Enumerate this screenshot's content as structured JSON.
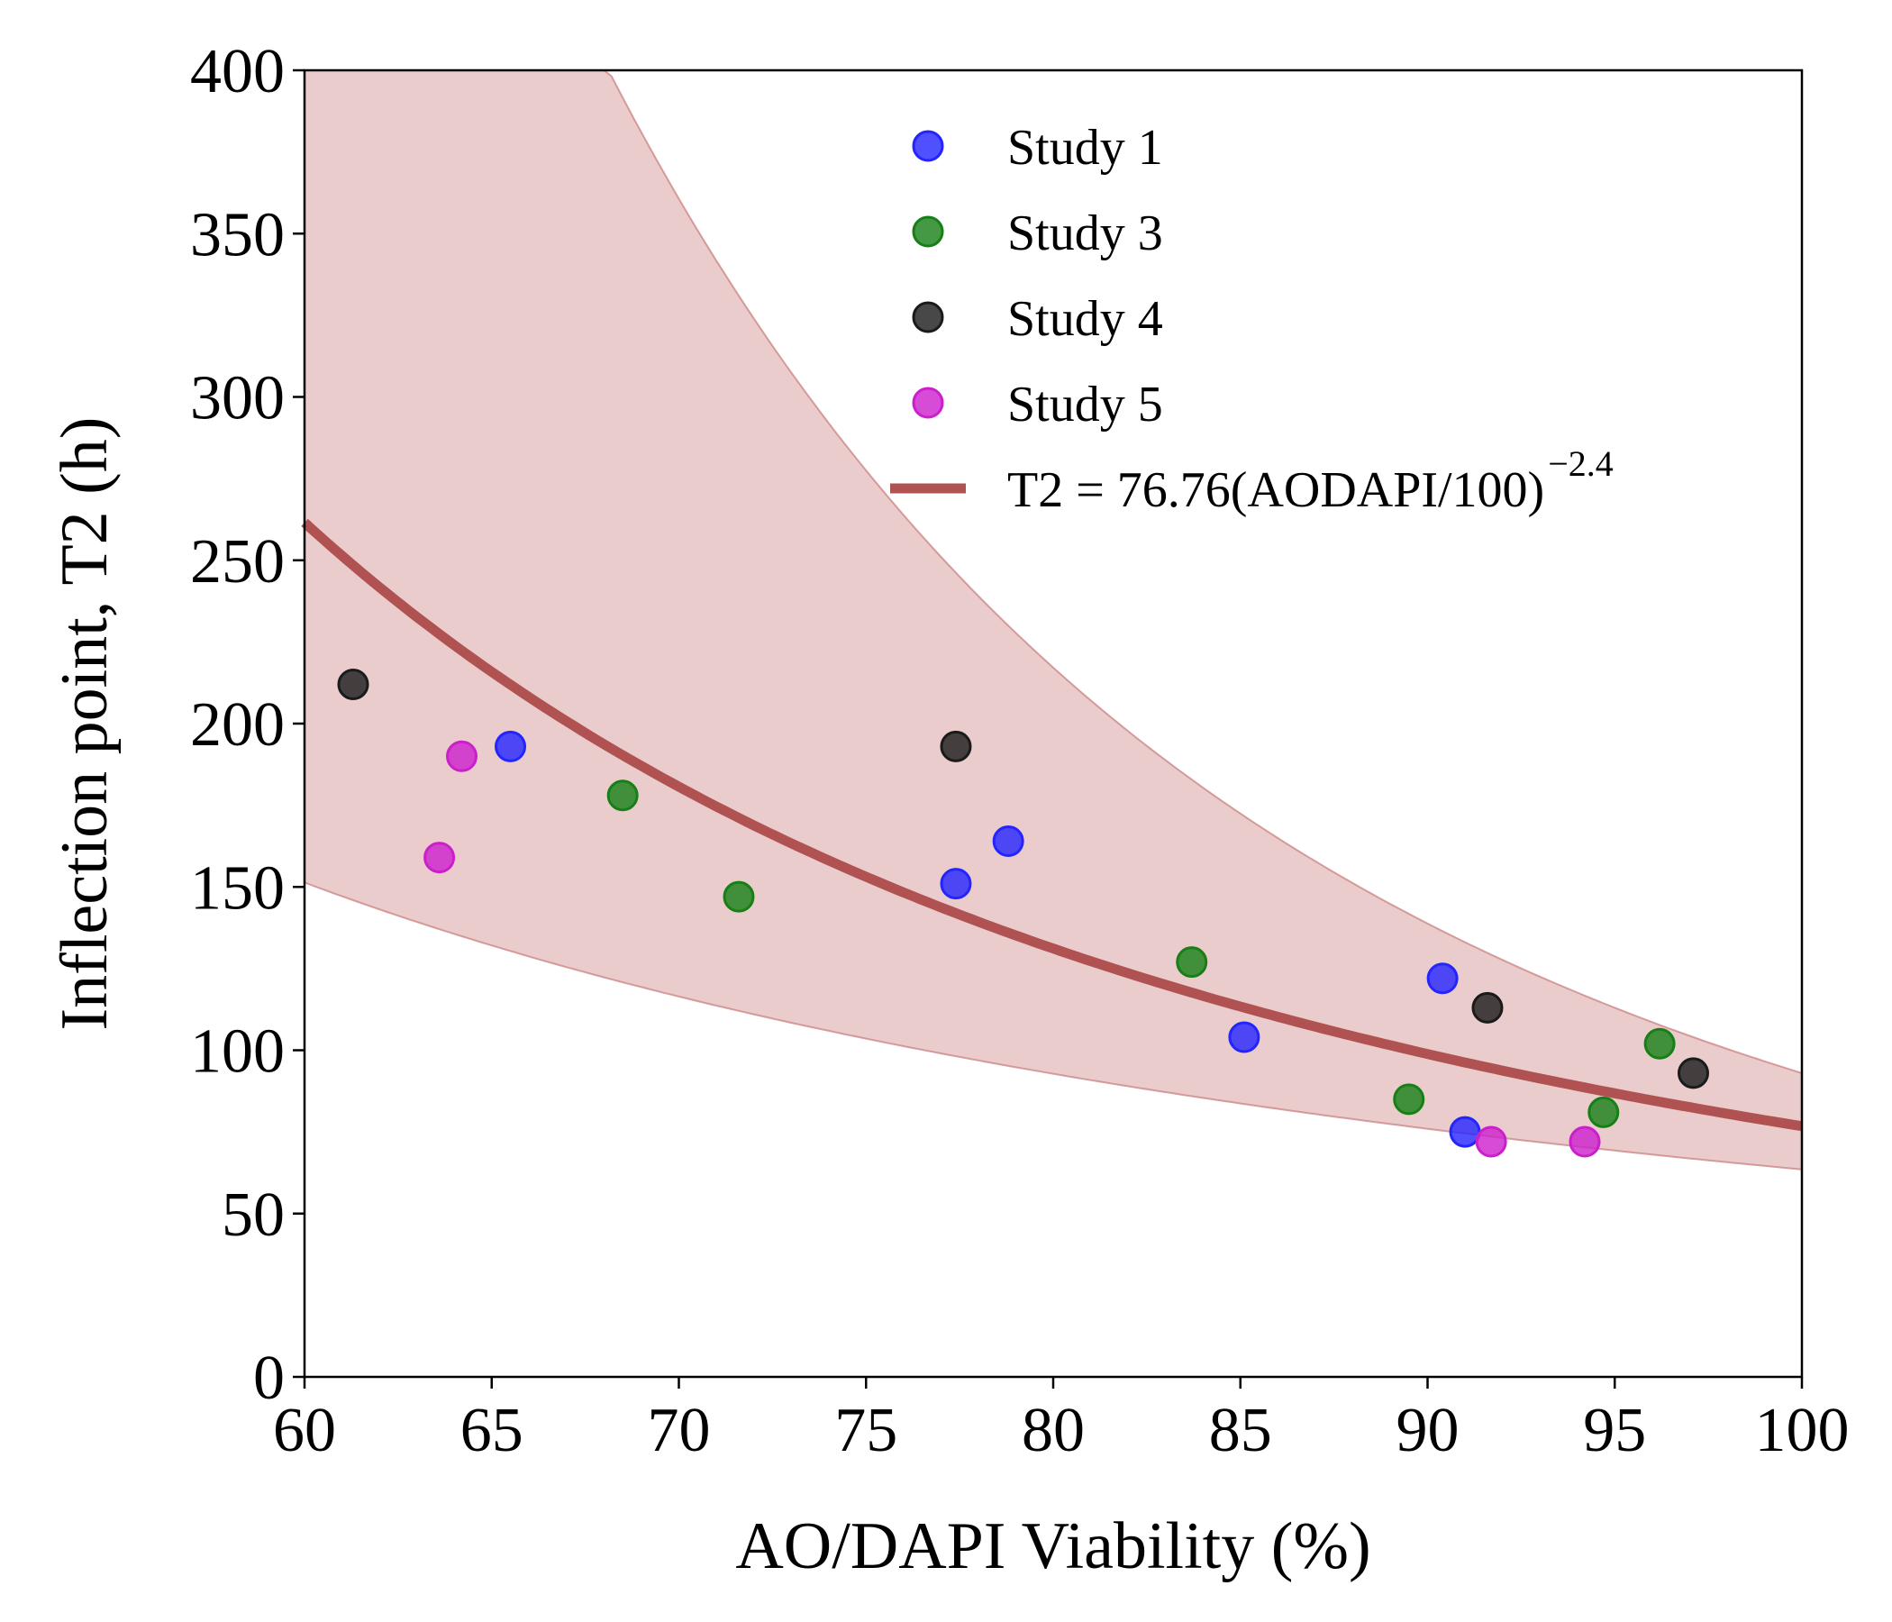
{
  "chart_data": {
    "type": "scatter",
    "xlabel": "AO/DAPI Viability (%)",
    "ylabel": "Inflection point, T2 (h)",
    "xlim": [
      60,
      100
    ],
    "ylim": [
      0,
      400
    ],
    "x_ticks": [
      "60",
      "65",
      "70",
      "75",
      "80",
      "85",
      "90",
      "95",
      "100"
    ],
    "y_ticks": [
      "0",
      "50",
      "100",
      "150",
      "200",
      "250",
      "300",
      "350",
      "400"
    ],
    "grid": false,
    "legend_position": "top-right",
    "series": [
      {
        "name": "Study 1",
        "color": "#2424ff",
        "points": [
          [
            65.5,
            193
          ],
          [
            77.4,
            151
          ],
          [
            78.8,
            164
          ],
          [
            85.1,
            104
          ],
          [
            90.4,
            122
          ],
          [
            91.0,
            75
          ]
        ]
      },
      {
        "name": "Study 3",
        "color": "#168016",
        "points": [
          [
            68.5,
            178
          ],
          [
            71.6,
            147
          ],
          [
            83.7,
            127
          ],
          [
            89.5,
            85
          ],
          [
            94.7,
            81
          ],
          [
            96.2,
            102
          ]
        ]
      },
      {
        "name": "Study 4",
        "color": "#1a1a1a",
        "points": [
          [
            61.3,
            212
          ],
          [
            77.4,
            193
          ],
          [
            91.6,
            113
          ],
          [
            97.1,
            93
          ]
        ]
      },
      {
        "name": "Study 5",
        "color": "#cc1fcc",
        "points": [
          [
            63.6,
            159
          ],
          [
            64.2,
            190
          ],
          [
            91.7,
            72
          ],
          [
            94.2,
            72
          ]
        ]
      }
    ],
    "fit": {
      "label_main": "T2 = 76.76(AODAPI/100)",
      "label_exponent": "−2.4",
      "coefficient": 76.76,
      "exponent": -2.4,
      "color": "#b05252",
      "band_color": "#c77a7a",
      "band_lower": {
        "coefficient": 63.5,
        "exponent": -1.7
      },
      "band_upper": {
        "coefficient": 93.0,
        "exponent": -3.8
      }
    }
  }
}
